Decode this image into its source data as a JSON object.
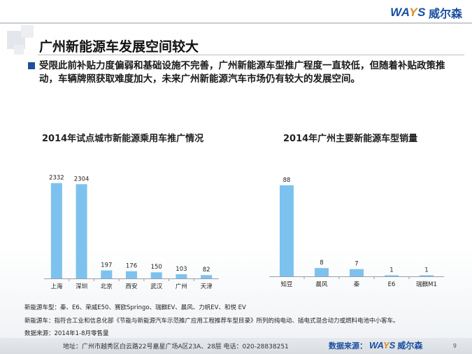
{
  "logo": {
    "en_a": "WA",
    "en_y": "Y",
    "en_b": "S",
    "cn": "威尔森"
  },
  "title": "广州新能源车发展空间较大",
  "intro": "受限此前补贴力度偏弱和基础设施不完善，广州新能源车型推广程度一直较低，但随着补贴政策推动，车辆牌照获取难度加大，未来广州新能源汽车市场仍有较大的发展空间。",
  "colors": {
    "bar": "#7dc2ef",
    "accent": "#1a4fa0",
    "bullet": "#1d4f9a"
  },
  "chart_data": [
    {
      "type": "bar",
      "title": "2014年试点城市新能源乘用车推广情况",
      "categories": [
        "上海",
        "深圳",
        "北京",
        "西安",
        "武汉",
        "广州",
        "天津"
      ],
      "values": [
        2332,
        2304,
        197,
        176,
        150,
        103,
        82
      ],
      "ylim": [
        0,
        2600
      ],
      "grid": false,
      "legend": "none"
    },
    {
      "type": "bar",
      "title": "2014年广州主要新能源车型销量",
      "categories": [
        "知豆",
        "晨风",
        "秦",
        "E6",
        "瑞麒M1"
      ],
      "values": [
        88,
        8,
        7,
        1,
        1
      ],
      "ylim": [
        0,
        98
      ],
      "grid": false,
      "legend": "none"
    }
  ],
  "notes": {
    "models": "新能源车型：秦、E6、荣威E50、赛欧Springo、瑞麒EV、晨风、力帆EV、和悦 EV",
    "definition": "新能源车：指符合工业和信息化部《节能与新能源汽车示范推广应用工程推荐车型目录》所列的纯电动、插电式混合动力或燃料电池中小客车。",
    "source": "数据来源：2014年1-8月零售量"
  },
  "footer": {
    "address": "地址：广州市越秀区白云路22号嘉星广场A区23A、28层   电话：020-28838251",
    "source_label": "数据来源：",
    "page": "9"
  }
}
